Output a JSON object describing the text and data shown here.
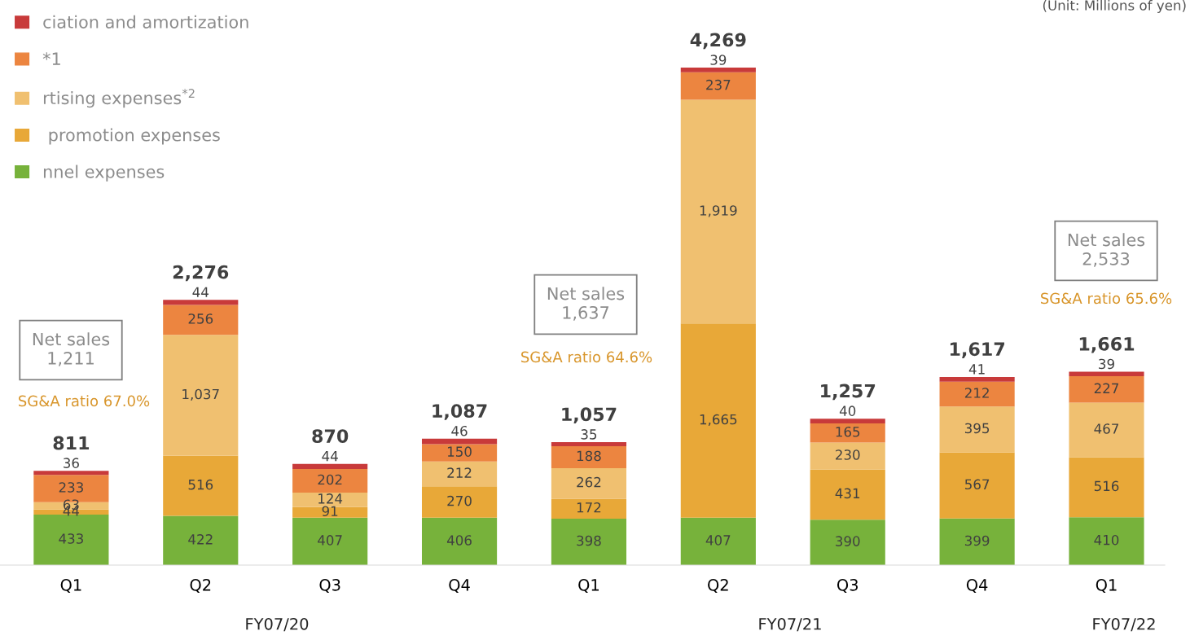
{
  "chart_data": {
    "type": "bar",
    "stacked": true,
    "categories": [
      "Q1",
      "Q2",
      "Q3",
      "Q4",
      "Q1",
      "Q2",
      "Q3",
      "Q4",
      "Q1"
    ],
    "series": [
      {
        "name": "nnel expenses",
        "color": "#77b23b",
        "values": [
          433,
          422,
          407,
          406,
          398,
          407,
          390,
          399,
          410
        ],
        "value_labels": [
          "433",
          "422",
          "407",
          "406",
          "398",
          "407",
          "390",
          "399",
          "410"
        ]
      },
      {
        "name": " promotion expenses",
        "color": "#e8a838",
        "values": [
          44,
          516,
          91,
          270,
          172,
          1665,
          431,
          567,
          516
        ],
        "value_labels": [
          "44",
          "516",
          "91",
          "270",
          "172",
          "1,665",
          "431",
          "567",
          "516"
        ]
      },
      {
        "name": "rtising expenses$^{*2}$",
        "color": "#f0c070",
        "values": [
          63,
          1037,
          124,
          212,
          262,
          1919,
          230,
          395,
          467
        ],
        "value_labels": [
          "63",
          "1,037",
          "124",
          "212",
          "262",
          "1,919",
          "230",
          "395",
          "467"
        ]
      },
      {
        "name": "*1",
        "color": "#ec8540",
        "values": [
          233,
          256,
          202,
          150,
          188,
          237,
          165,
          212,
          227
        ],
        "value_labels": [
          "233",
          "256",
          "202",
          "150",
          "188",
          "237",
          "165",
          "212",
          "227"
        ]
      },
      {
        "name": "ciation and amortization",
        "color": "#c83a3a",
        "values": [
          36,
          44,
          44,
          46,
          35,
          39,
          40,
          41,
          39
        ],
        "value_labels": [
          "36",
          "44",
          "44",
          "46",
          "35",
          "39",
          "40",
          "41",
          "39"
        ]
      }
    ],
    "totals": [
      "811",
      "2,276",
      "870",
      "1,087",
      "1,057",
      "4,269",
      "1,257",
      "1,617",
      "1,661"
    ],
    "data_labels": true,
    "tick_labels": "x",
    "legend": "top left",
    "annotations": [
      "(Unit: Millions of yen)",
      "Net sales\n1,211",
      "SG&A ratio 67.0%",
      "Net sales\n1,637",
      "SG&A ratio 64.6%",
      "Net sales\n2,533",
      "SG&A ratio 65.6%",
      "FY07/20",
      "FY07/21",
      "FY07/22"
    ]
  }
}
